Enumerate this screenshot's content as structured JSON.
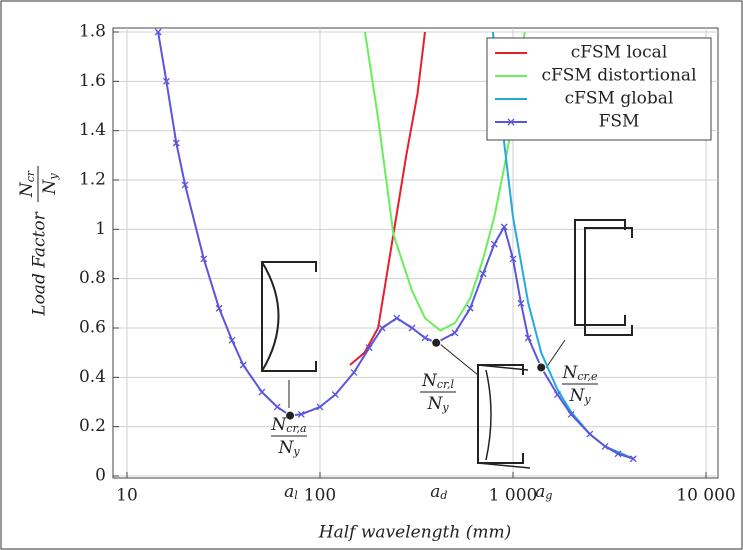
{
  "chart_data": {
    "type": "line",
    "xlabel": "Half wavelength (mm)",
    "ylabel": "Load Factor",
    "ylabel_fraction": {
      "numerator": "N",
      "numerator_sub": "cr",
      "denominator": "N",
      "denominator_sub": "y"
    },
    "xscale": "log",
    "grid": true,
    "legend": "upper right",
    "xlim": [
      10,
      10000
    ],
    "ylim": [
      0,
      1.8
    ],
    "xticks": [
      10,
      100,
      {
        "value": 1000,
        "label": "1 000"
      },
      {
        "value": 10000,
        "label": "10 000"
      }
    ],
    "yticks": [
      0,
      0.2,
      0.4,
      0.6,
      0.8,
      1,
      1.2,
      1.4,
      1.6,
      1.8
    ],
    "series": [
      {
        "name": "cFSM local",
        "color": "#e4202c",
        "x": [
          143,
          170,
          200,
          240,
          280,
          320,
          350
        ],
        "values": [
          0.45,
          0.5,
          0.6,
          0.98,
          1.3,
          1.55,
          1.8
        ]
      },
      {
        "name": "cFSM distortional",
        "color": "#6aee5a",
        "x": [
          171,
          200,
          240,
          300,
          350,
          420,
          500,
          600,
          700,
          800,
          900,
          1000,
          1150
        ],
        "values": [
          1.8,
          1.45,
          0.98,
          0.75,
          0.64,
          0.59,
          0.62,
          0.72,
          0.88,
          1.05,
          1.25,
          1.45,
          1.8
        ]
      },
      {
        "name": "cFSM global",
        "color": "#22aadd",
        "x": [
          787,
          900,
          1000,
          1200,
          1400,
          1700,
          2000,
          2500,
          3000,
          4200
        ],
        "values": [
          1.8,
          1.35,
          1.05,
          0.7,
          0.5,
          0.35,
          0.26,
          0.17,
          0.12,
          0.07
        ]
      },
      {
        "name": "FSM",
        "color": "#5a55dd",
        "marker": "x",
        "x": [
          14.5,
          16,
          18,
          20,
          25,
          30,
          35,
          40,
          50,
          60,
          70,
          80,
          100,
          120,
          150,
          180,
          210,
          250,
          300,
          350,
          400,
          500,
          600,
          700,
          800,
          900,
          1000,
          1100,
          1200,
          1400,
          1700,
          2000,
          2500,
          3000,
          3500,
          4200
        ],
        "values": [
          1.8,
          1.6,
          1.35,
          1.18,
          0.88,
          0.68,
          0.55,
          0.45,
          0.34,
          0.28,
          0.245,
          0.25,
          0.28,
          0.33,
          0.42,
          0.52,
          0.6,
          0.64,
          0.6,
          0.56,
          0.54,
          0.58,
          0.68,
          0.82,
          0.94,
          1.01,
          0.88,
          0.7,
          0.56,
          0.44,
          0.33,
          0.25,
          0.17,
          0.12,
          0.09,
          0.07
        ]
      }
    ],
    "x_markers": [
      {
        "label": "a",
        "sub": "l",
        "x": 70
      },
      {
        "label": "a",
        "sub": "d",
        "x": 400
      },
      {
        "label": "a",
        "sub": "g",
        "x": 1400
      }
    ],
    "critical_points": [
      {
        "x": 70,
        "y": 0.245,
        "numerator": "N",
        "numerator_sub": "cr,a",
        "denominator": "N",
        "denominator_sub": "y"
      },
      {
        "x": 400,
        "y": 0.54,
        "numerator": "N",
        "numerator_sub": "cr,l",
        "denominator": "N",
        "denominator_sub": "y"
      },
      {
        "x": 1400,
        "y": 0.44,
        "numerator": "N",
        "numerator_sub": "cr,e",
        "denominator": "N",
        "denominator_sub": "y"
      }
    ]
  }
}
